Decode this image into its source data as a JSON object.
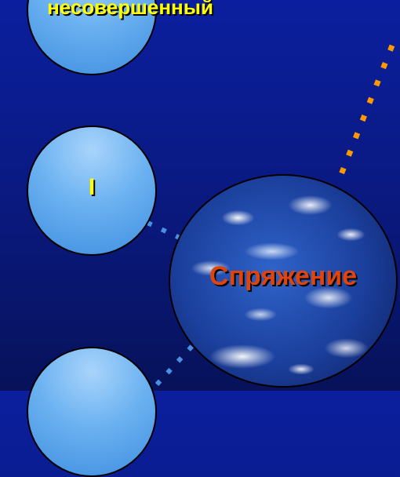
{
  "diagram": {
    "top_label": "несовершенный",
    "middle_label": "I",
    "center_label": "Спряжение"
  },
  "colors": {
    "background": "#0a1a84",
    "bubble": "#6cb2f1",
    "label_yellow": "#ffff00",
    "center_label": "#e0440e",
    "connector_orange": "#ff9900",
    "connector_blue": "#4a90e2"
  }
}
